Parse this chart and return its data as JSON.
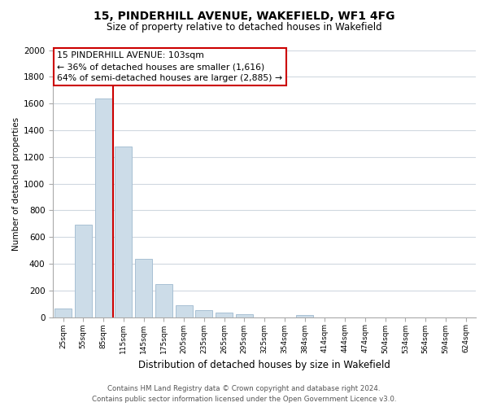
{
  "title": "15, PINDERHILL AVENUE, WAKEFIELD, WF1 4FG",
  "subtitle": "Size of property relative to detached houses in Wakefield",
  "xlabel": "Distribution of detached houses by size in Wakefield",
  "ylabel": "Number of detached properties",
  "bar_labels": [
    "25sqm",
    "55sqm",
    "85sqm",
    "115sqm",
    "145sqm",
    "175sqm",
    "205sqm",
    "235sqm",
    "265sqm",
    "295sqm",
    "325sqm",
    "354sqm",
    "384sqm",
    "414sqm",
    "444sqm",
    "474sqm",
    "504sqm",
    "534sqm",
    "564sqm",
    "594sqm",
    "624sqm"
  ],
  "bar_values": [
    65,
    695,
    1635,
    1280,
    435,
    250,
    90,
    55,
    35,
    25,
    0,
    0,
    15,
    0,
    0,
    0,
    0,
    0,
    0,
    0,
    0
  ],
  "bar_color": "#ccdce8",
  "bar_edge_color": "#a8c0d4",
  "annotation_title": "15 PINDERHILL AVENUE: 103sqm",
  "annotation_line1": "← 36% of detached houses are smaller (1,616)",
  "annotation_line2": "64% of semi-detached houses are larger (2,885) →",
  "annotation_box_color": "#ffffff",
  "annotation_box_edge_color": "#cc0000",
  "vline_color": "#cc0000",
  "vline_x_index": 2.5,
  "ylim": [
    0,
    2000
  ],
  "yticks": [
    0,
    200,
    400,
    600,
    800,
    1000,
    1200,
    1400,
    1600,
    1800,
    2000
  ],
  "footer_line1": "Contains HM Land Registry data © Crown copyright and database right 2024.",
  "footer_line2": "Contains public sector information licensed under the Open Government Licence v3.0.",
  "bg_color": "#ffffff",
  "grid_color": "#d0d8e0"
}
